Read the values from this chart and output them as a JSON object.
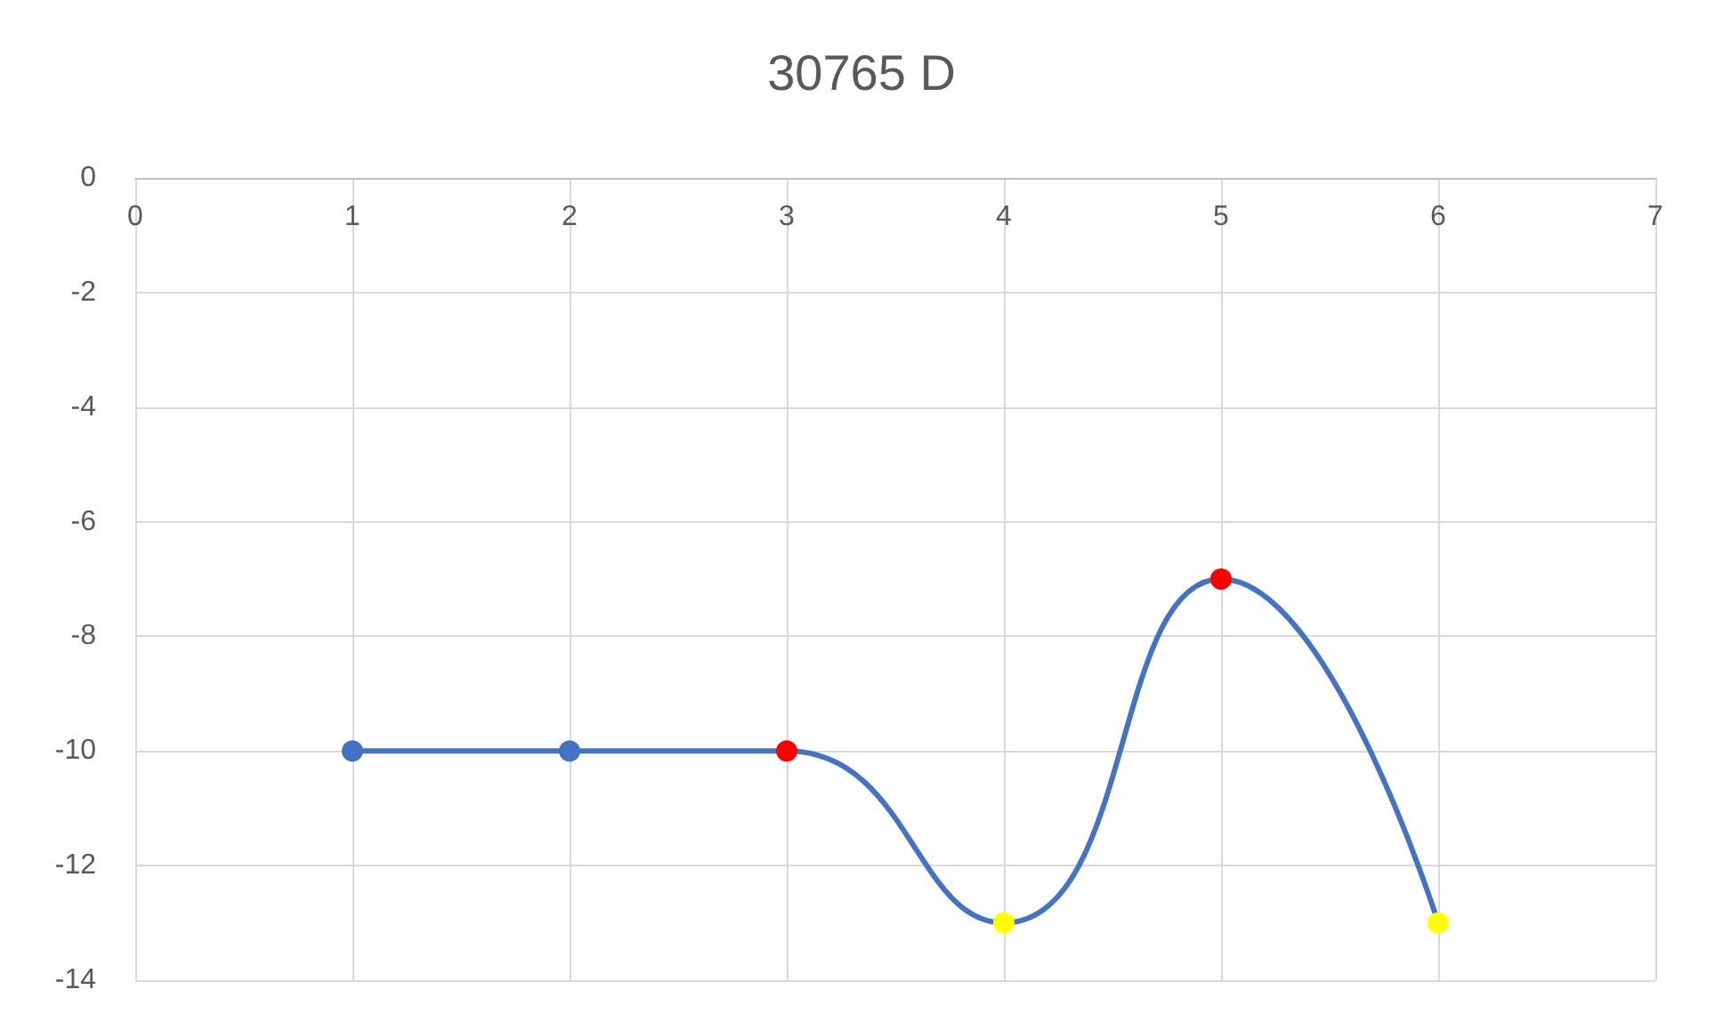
{
  "chart_data": {
    "type": "line",
    "title": "30765 D",
    "x": [
      1,
      2,
      3,
      4,
      5,
      6
    ],
    "series": [
      {
        "color": "#4472c4",
        "colors": [
          "#4472c4",
          "#4472c4",
          "#ff0000",
          "#ffff00",
          "#ff0000",
          "#ffff00"
        ],
        "values": [
          -10,
          -10,
          -10,
          -13,
          -7,
          -13
        ]
      }
    ],
    "xlim": [
      0,
      7
    ],
    "xticks": [
      0,
      1,
      2,
      3,
      4,
      5,
      6,
      7
    ],
    "ylim": [
      -14,
      0
    ],
    "yticks": [
      -14,
      -12,
      -10,
      -8,
      -6,
      -4,
      -2,
      0
    ],
    "grid": true,
    "marker": "circle",
    "line_style": "solid"
  }
}
